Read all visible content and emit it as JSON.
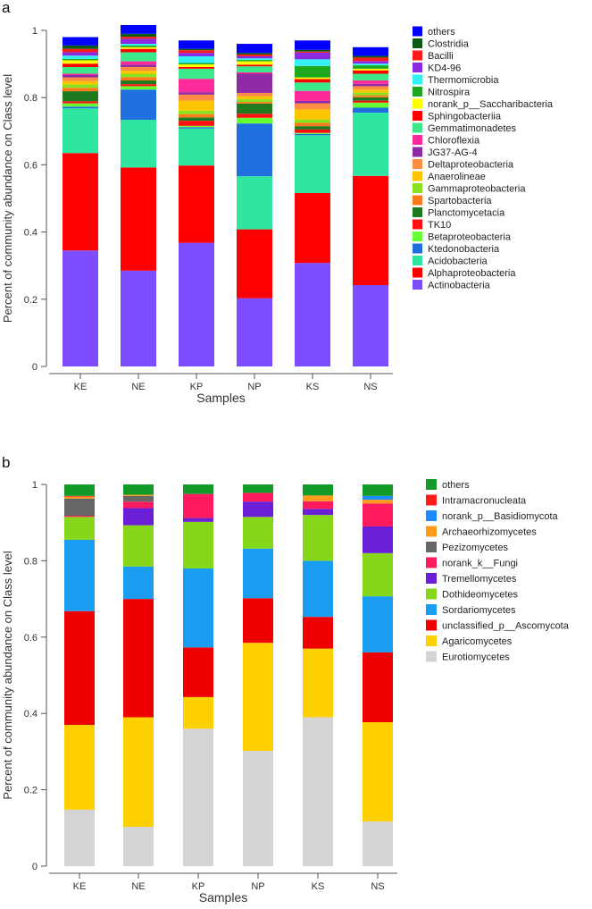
{
  "chart_data": [
    {
      "type": "bar",
      "panel_label": "a",
      "stacked": true,
      "xlabel": "Samples",
      "ylabel": "Percent of community abundance on Class level",
      "ylim": [
        0,
        1
      ],
      "yticks": [
        0,
        0.2,
        0.4,
        0.6,
        0.8,
        1
      ],
      "ytick_labels": [
        "0",
        "0.2",
        "0.4",
        "0.6",
        "0.8",
        "1"
      ],
      "legend_position": "right",
      "categories": [
        "KE",
        "NE",
        "KP",
        "NP",
        "KS",
        "NS"
      ],
      "series": [
        {
          "name": "Actinobacteria",
          "color": "#7d4dff",
          "values": [
            0.345,
            0.285,
            0.368,
            0.203,
            0.308,
            0.242
          ]
        },
        {
          "name": "Alphaproteobacteria",
          "color": "#ff0000",
          "values": [
            0.29,
            0.307,
            0.23,
            0.205,
            0.208,
            0.325
          ]
        },
        {
          "name": "Acidobacteria",
          "color": "#2ee6a0",
          "values": [
            0.133,
            0.142,
            0.11,
            0.158,
            0.172,
            0.188
          ]
        },
        {
          "name": "Ktedonobacteria",
          "color": "#1f6fde",
          "values": [
            0.005,
            0.09,
            0.004,
            0.157,
            0.004,
            0.015
          ]
        },
        {
          "name": "Betaproteobacteria",
          "color": "#66ff33",
          "values": [
            0.01,
            0.01,
            0.004,
            0.017,
            0.003,
            0.015
          ]
        },
        {
          "name": "TK10",
          "color": "#ff1010",
          "values": [
            0.006,
            0.006,
            0.015,
            0.012,
            0.01,
            0.006
          ]
        },
        {
          "name": "Planctomycetacia",
          "color": "#1f7a1f",
          "values": [
            0.03,
            0.011,
            0.01,
            0.03,
            0.01,
            0.01
          ]
        },
        {
          "name": "Spartobacteria",
          "color": "#ff7a1a",
          "values": [
            0.01,
            0.01,
            0.01,
            0.005,
            0.01,
            0.006
          ]
        },
        {
          "name": "Gammaproteobacteria",
          "color": "#88e21f",
          "values": [
            0.01,
            0.01,
            0.01,
            0.008,
            0.01,
            0.008
          ]
        },
        {
          "name": "Anaerolineae",
          "color": "#ffc400",
          "values": [
            0.01,
            0.009,
            0.03,
            0.009,
            0.03,
            0.009
          ]
        },
        {
          "name": "Deltaproteobacteria",
          "color": "#ff8c42",
          "values": [
            0.011,
            0.011,
            0.018,
            0.01,
            0.018,
            0.01
          ]
        },
        {
          "name": "JG37-AG-4",
          "color": "#8e2aa6",
          "values": [
            0.007,
            0.007,
            0.007,
            0.057,
            0.007,
            0.007
          ]
        },
        {
          "name": "Chloroflexia",
          "color": "#ff2a9a",
          "values": [
            0.004,
            0.01,
            0.04,
            0.004,
            0.03,
            0.01
          ]
        },
        {
          "name": "Gemmatimonadetes",
          "color": "#3de88a",
          "values": [
            0.02,
            0.027,
            0.03,
            0.018,
            0.025,
            0.02
          ]
        },
        {
          "name": "Sphingobacteriia",
          "color": "#ff0000",
          "values": [
            0.01,
            0.01,
            0.005,
            0.005,
            0.01,
            0.01
          ]
        },
        {
          "name": "norank_p__Saccharibacteria",
          "color": "#ffff00",
          "values": [
            0.01,
            0.005,
            0.008,
            0.01,
            0.005,
            0.005
          ]
        },
        {
          "name": "Nitrospira",
          "color": "#1ea81e",
          "values": [
            0.004,
            0.005,
            0.004,
            0.004,
            0.034,
            0.01
          ]
        },
        {
          "name": "Thermomicrobia",
          "color": "#33f0f5",
          "values": [
            0.01,
            0.005,
            0.02,
            0.005,
            0.02,
            0.005
          ]
        },
        {
          "name": "KD4-96",
          "color": "#8a2be2",
          "values": [
            0.01,
            0.015,
            0.01,
            0.006,
            0.02,
            0.008
          ]
        },
        {
          "name": "Bacilli",
          "color": "#ff1a1a",
          "values": [
            0.01,
            0.006,
            0.008,
            0.005,
            0.003,
            0.01
          ]
        },
        {
          "name": "Clostridia",
          "color": "#0f5a12",
          "values": [
            0.01,
            0.009,
            0.004,
            0.005,
            0.005,
            0.005
          ]
        },
        {
          "name": "others",
          "color": "#0000ff",
          "values": [
            0.025,
            0.026,
            0.025,
            0.027,
            0.028,
            0.026
          ]
        }
      ]
    },
    {
      "type": "bar",
      "panel_label": "b",
      "stacked": true,
      "xlabel": "Samples",
      "ylabel": "Percent of community abundance on Class level",
      "ylim": [
        0,
        1
      ],
      "yticks": [
        0,
        0.2,
        0.4,
        0.6,
        0.8,
        1
      ],
      "ytick_labels": [
        "0",
        "0.2",
        "0.4",
        "0.6",
        "0.8",
        "1"
      ],
      "legend_position": "right",
      "categories": [
        "KE",
        "NE",
        "KP",
        "NP",
        "KS",
        "NS"
      ],
      "series": [
        {
          "name": "Eurotiomycetes",
          "color": "#d4d4d4",
          "values": [
            0.148,
            0.103,
            0.36,
            0.302,
            0.39,
            0.117
          ]
        },
        {
          "name": "Agaricomycetes",
          "color": "#ffd000",
          "values": [
            0.222,
            0.287,
            0.083,
            0.283,
            0.18,
            0.26
          ]
        },
        {
          "name": "unclassified_p__Ascomycota",
          "color": "#ee0000",
          "values": [
            0.298,
            0.31,
            0.13,
            0.117,
            0.083,
            0.183
          ]
        },
        {
          "name": "Sordariomycetes",
          "color": "#1a9cf0",
          "values": [
            0.187,
            0.085,
            0.207,
            0.13,
            0.147,
            0.147
          ]
        },
        {
          "name": "Dothideomycetes",
          "color": "#86d61a",
          "values": [
            0.06,
            0.108,
            0.122,
            0.083,
            0.12,
            0.113
          ]
        },
        {
          "name": "Tremellomycetes",
          "color": "#6a1fd6",
          "values": [
            0.0,
            0.045,
            0.01,
            0.04,
            0.016,
            0.07
          ]
        },
        {
          "name": "norank_k__Fungi",
          "color": "#ff1a5e",
          "values": [
            0.003,
            0.017,
            0.063,
            0.023,
            0.02,
            0.06
          ]
        },
        {
          "name": "Pezizomycetes",
          "color": "#666666",
          "values": [
            0.045,
            0.015,
            0.0,
            0.0,
            0.0,
            0.0
          ]
        },
        {
          "name": "Archaeorhizomycetes",
          "color": "#ff9a1a",
          "values": [
            0.005,
            0.003,
            0.0,
            0.0,
            0.015,
            0.01
          ]
        },
        {
          "name": "norank_p__Basidiomycota",
          "color": "#1a8cff",
          "values": [
            0.0,
            0.0,
            0.0,
            0.0,
            0.0,
            0.01
          ]
        },
        {
          "name": "Intramacronucleata",
          "color": "#ff1a1a",
          "values": [
            0.002,
            0.0,
            0.0,
            0.0,
            0.0,
            0.0
          ]
        },
        {
          "name": "others",
          "color": "#139b2a",
          "values": [
            0.03,
            0.027,
            0.025,
            0.022,
            0.029,
            0.03
          ]
        }
      ]
    }
  ]
}
